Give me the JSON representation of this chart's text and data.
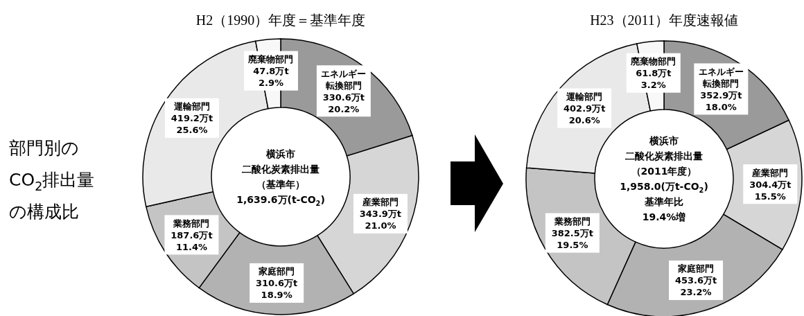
{
  "chart_data": [
    {
      "type": "other",
      "annotations": [
        "部門別の",
        "CO$_{2}$排出量",
        "の構成比"
      ]
    },
    {
      "type": "donut",
      "title": "H2（1990）年度＝基準年度",
      "categories": [
        "エネルギー転換部門",
        "産業部門",
        "家庭部門",
        "業務部門",
        "運輸部門",
        "廃棄物部門"
      ],
      "values": [
        330.6,
        343.9,
        310.6,
        187.6,
        419.2,
        47.8
      ],
      "value_labels": [
        "330.6万t 20.2%",
        "343.9万t 21.0%",
        "310.6万t 18.9%",
        "187.6万t 11.4%",
        "419.2万t 25.6%",
        "47.8万t 2.9%"
      ],
      "colors": [
        "#9a9a9a",
        "#d6d6d6",
        "#b2b2b2",
        "#c4c4c4",
        "#e9e9e9",
        "#f8f8f8"
      ],
      "annotations": [
        "横浜市",
        "二酸化炭素排出量",
        "（基準年）",
        "1,639.6万(t-CO$_{2}$)"
      ]
    },
    {
      "type": "donut",
      "title": "H23（2011）年度速報値",
      "categories": [
        "エネルギー転換部門",
        "産業部門",
        "家庭部門",
        "業務部門",
        "運輸部門",
        "廃棄物部門"
      ],
      "values": [
        352.9,
        304.4,
        453.6,
        382.5,
        402.9,
        61.8
      ],
      "value_labels": [
        "352.9万t 18.0%",
        "304.4万t 15.5%",
        "453.6万t 23.2%",
        "382.5万t 19.5%",
        "402.9万t 20.6%",
        "61.8万t 3.2%"
      ],
      "colors": [
        "#9a9a9a",
        "#d6d6d6",
        "#b2b2b2",
        "#c4c4c4",
        "#e9e9e9",
        "#f8f8f8"
      ],
      "annotations": [
        "横浜市",
        "二酸化炭素排出量",
        "（2011年度）",
        "1,958.0(万t-CO$_{2}$)",
        "基準年比",
        "19.4%増"
      ]
    }
  ]
}
